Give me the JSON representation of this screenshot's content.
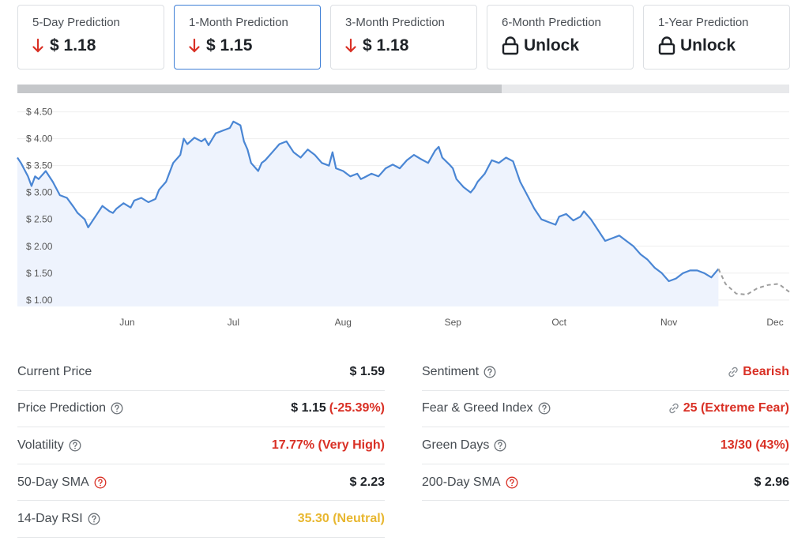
{
  "cards": [
    {
      "label": "5-Day Prediction",
      "value": "$ 1.18",
      "icon": "down-arrow-icon"
    },
    {
      "label": "1-Month Prediction",
      "value": "$ 1.15",
      "icon": "down-arrow-icon",
      "active": true
    },
    {
      "label": "3-Month Prediction",
      "value": "$ 1.18",
      "icon": "down-arrow-icon"
    },
    {
      "label": "6-Month Prediction",
      "value": "Unlock",
      "icon": "lock-icon"
    },
    {
      "label": "1-Year Prediction",
      "value": "Unlock",
      "icon": "lock-icon"
    }
  ],
  "progress": {
    "fraction": 0.627
  },
  "colors": {
    "accent": "#3f7fd6",
    "line": "#4a86d4",
    "fill": "#eef3fd",
    "down": "#d93025",
    "neutral": "#e8b730",
    "forecast": "#9e9e9e"
  },
  "chart_data": {
    "type": "line",
    "title": "",
    "xlabel": "",
    "ylabel": "",
    "y_ticks": [
      "$ 4.50",
      "$ 4.00",
      "$ 3.50",
      "$ 3.00",
      "$ 2.50",
      "$ 2.00",
      "$ 1.50",
      "$ 1.00"
    ],
    "y_tick_values": [
      4.5,
      4.0,
      3.5,
      3.0,
      2.5,
      2.0,
      1.5,
      1.0
    ],
    "ylim": [
      0.88,
      4.7
    ],
    "x_tick_labels": [
      "Jun",
      "Jul",
      "Aug",
      "Sep",
      "Oct",
      "Nov",
      "Dec"
    ],
    "x_tick_days": [
      31,
      61,
      92,
      123,
      153,
      184,
      214
    ],
    "day_range": [
      0,
      218
    ],
    "series": [
      {
        "kind": "historical",
        "days": [
          0,
          1,
          3,
          4,
          5,
          6,
          8,
          10,
          12,
          14,
          16,
          17,
          19,
          20,
          22,
          24,
          26,
          27,
          28,
          30,
          32,
          33,
          35,
          37,
          39,
          40,
          42,
          44,
          46,
          47,
          48,
          50,
          52,
          53,
          54,
          56,
          58,
          60,
          61,
          63,
          64,
          65,
          66,
          68,
          69,
          70,
          72,
          74,
          76,
          77,
          78,
          80,
          82,
          84,
          86,
          88,
          89,
          90,
          92,
          94,
          96,
          97,
          98,
          100,
          102,
          104,
          106,
          108,
          110,
          112,
          114,
          116,
          118,
          119,
          120,
          122,
          123,
          124,
          126,
          128,
          129,
          130,
          132,
          134,
          136,
          138,
          140,
          142,
          144,
          146,
          148,
          150,
          152,
          153,
          155,
          157,
          159,
          160,
          162,
          164,
          166,
          168,
          170,
          172,
          174,
          176,
          178,
          180,
          182,
          184,
          186,
          188,
          190,
          192,
          194,
          196,
          198
        ],
        "values": [
          3.65,
          3.55,
          3.3,
          3.12,
          3.3,
          3.25,
          3.4,
          3.2,
          2.95,
          2.9,
          2.72,
          2.62,
          2.5,
          2.35,
          2.55,
          2.75,
          2.65,
          2.62,
          2.7,
          2.8,
          2.72,
          2.85,
          2.9,
          2.82,
          2.88,
          3.05,
          3.2,
          3.55,
          3.7,
          4.0,
          3.9,
          4.02,
          3.95,
          4.0,
          3.88,
          4.1,
          4.15,
          4.2,
          4.32,
          4.25,
          3.95,
          3.8,
          3.55,
          3.4,
          3.55,
          3.6,
          3.75,
          3.9,
          3.95,
          3.85,
          3.75,
          3.65,
          3.8,
          3.7,
          3.55,
          3.5,
          3.75,
          3.45,
          3.4,
          3.3,
          3.35,
          3.25,
          3.28,
          3.35,
          3.3,
          3.45,
          3.52,
          3.45,
          3.6,
          3.7,
          3.62,
          3.55,
          3.78,
          3.85,
          3.65,
          3.52,
          3.45,
          3.25,
          3.1,
          3.0,
          3.08,
          3.2,
          3.35,
          3.6,
          3.55,
          3.65,
          3.58,
          3.2,
          2.95,
          2.7,
          2.5,
          2.45,
          2.4,
          2.55,
          2.6,
          2.48,
          2.55,
          2.65,
          2.5,
          2.3,
          2.1,
          2.15,
          2.2,
          2.1,
          2.0,
          1.85,
          1.75,
          1.6,
          1.5,
          1.35,
          1.4,
          1.5,
          1.55,
          1.55,
          1.5,
          1.42,
          1.58
        ]
      },
      {
        "kind": "forecast",
        "days": [
          198,
          200,
          203,
          206,
          209,
          212,
          215,
          218
        ],
        "values": [
          1.58,
          1.3,
          1.12,
          1.1,
          1.22,
          1.28,
          1.3,
          1.15
        ]
      }
    ]
  },
  "stats_left": [
    {
      "label": "Current Price",
      "value": "$ 1.59",
      "color": "dark",
      "help": false
    },
    {
      "label": "Price Prediction",
      "value": "$ 1.15",
      "extra": "(-25.39%)",
      "color": "dark",
      "help": true
    },
    {
      "label": "Volatility",
      "value": "17.77% (Very High)",
      "color": "red",
      "help": true
    },
    {
      "label": "50-Day SMA",
      "value": "$ 2.23",
      "color": "dark",
      "help": true,
      "help_red": true
    },
    {
      "label": "14-Day RSI",
      "value": "35.30 (Neutral)",
      "color": "yellow",
      "help": true
    }
  ],
  "stats_right": [
    {
      "label": "Sentiment",
      "value": "Bearish",
      "color": "red",
      "help": true,
      "link": true
    },
    {
      "label": "Fear & Greed Index",
      "value": "25 (Extreme Fear)",
      "color": "red",
      "help": true,
      "link": true
    },
    {
      "label": "Green Days",
      "value": "13/30 (43%)",
      "color": "red",
      "help": true
    },
    {
      "label": "200-Day SMA",
      "value": "$ 2.96",
      "color": "dark",
      "help": true,
      "help_red": true
    }
  ]
}
